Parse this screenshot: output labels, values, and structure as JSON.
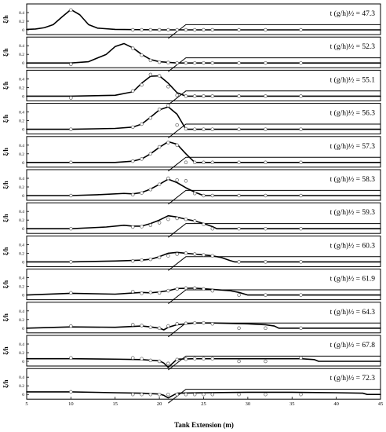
{
  "chart_data": {
    "type": "line",
    "xlabel": "Tank Extension (m)",
    "ylabel": "ξ/h",
    "xlim": [
      5,
      45
    ],
    "xticks": [
      5,
      10,
      15,
      20,
      25,
      30,
      35,
      40,
      45
    ],
    "ylim": [
      0,
      0.5
    ],
    "yticks": [
      "0",
      "0.2",
      "0.4"
    ],
    "gauge_x": [
      10,
      17,
      18,
      19,
      20,
      21,
      22,
      23,
      24,
      25,
      26,
      29,
      32,
      36
    ],
    "beach": [
      [
        21,
        -0.2
      ],
      [
        23,
        0.12
      ],
      [
        45,
        0.12
      ]
    ],
    "panels": [
      {
        "label": "t (g/h)½ = 47.3",
        "curve": [
          [
            5,
            0.01
          ],
          [
            6,
            0.02
          ],
          [
            7,
            0.05
          ],
          [
            8,
            0.12
          ],
          [
            9,
            0.3
          ],
          [
            10,
            0.47
          ],
          [
            11,
            0.35
          ],
          [
            12,
            0.12
          ],
          [
            13,
            0.04
          ],
          [
            15,
            0.01
          ],
          [
            20,
            0
          ],
          [
            23,
            0
          ],
          [
            45,
            0
          ]
        ],
        "points": [
          0.46,
          0,
          0,
          0,
          0,
          0,
          0,
          0,
          0,
          0,
          0,
          0,
          0,
          0
        ]
      },
      {
        "label": "t (g/h)½ = 52.3",
        "curve": [
          [
            5,
            0
          ],
          [
            10,
            0
          ],
          [
            12,
            0.03
          ],
          [
            14,
            0.2
          ],
          [
            15,
            0.38
          ],
          [
            16,
            0.45
          ],
          [
            17,
            0.35
          ],
          [
            18,
            0.2
          ],
          [
            19,
            0.08
          ],
          [
            20,
            0.03
          ],
          [
            22,
            0
          ],
          [
            23,
            0
          ],
          [
            45,
            0
          ]
        ],
        "points": [
          -0.03,
          0.34,
          0.18,
          0.06,
          0.02,
          0.01,
          0,
          0,
          0,
          0,
          0,
          0,
          0,
          0
        ]
      },
      {
        "label": "t (g/h)½ = 55.1",
        "curve": [
          [
            5,
            0
          ],
          [
            10,
            0
          ],
          [
            15,
            0.02
          ],
          [
            17,
            0.1
          ],
          [
            18,
            0.3
          ],
          [
            19,
            0.46
          ],
          [
            20,
            0.47
          ],
          [
            21,
            0.3
          ],
          [
            22,
            0.08
          ],
          [
            23,
            0
          ],
          [
            45,
            0
          ]
        ],
        "points": [
          -0.04,
          0.12,
          0.26,
          0.5,
          0.47,
          0.22,
          0.02,
          0,
          0,
          0,
          0,
          0,
          0,
          0
        ]
      },
      {
        "label": "t (g/h)½ = 56.3",
        "curve": [
          [
            5,
            0
          ],
          [
            10,
            0
          ],
          [
            15,
            0.02
          ],
          [
            17,
            0.05
          ],
          [
            18,
            0.12
          ],
          [
            19,
            0.28
          ],
          [
            20,
            0.45
          ],
          [
            21,
            0.52
          ],
          [
            22,
            0.35
          ],
          [
            23,
            0
          ],
          [
            45,
            0
          ]
        ],
        "points": [
          0,
          0.05,
          0.12,
          0.26,
          0.46,
          0.55,
          0.1,
          0.01,
          0,
          0,
          0,
          0,
          0,
          0
        ]
      },
      {
        "label": "t (g/h)½ = 57.3",
        "curve": [
          [
            5,
            0
          ],
          [
            10,
            0
          ],
          [
            15,
            0
          ],
          [
            17,
            0.03
          ],
          [
            18,
            0.08
          ],
          [
            19,
            0.2
          ],
          [
            20,
            0.35
          ],
          [
            21,
            0.48
          ],
          [
            22,
            0.42
          ],
          [
            23,
            0.2
          ],
          [
            24,
            0
          ],
          [
            45,
            0
          ]
        ],
        "points": [
          0,
          0.03,
          0.08,
          0.2,
          0.36,
          0.46,
          0.4,
          0,
          0,
          0,
          0,
          0,
          0,
          0
        ]
      },
      {
        "label": "t (g/h)½ = 58.3",
        "curve": [
          [
            5,
            0
          ],
          [
            10,
            0
          ],
          [
            13,
            0.02
          ],
          [
            16,
            0.05
          ],
          [
            17,
            0.04
          ],
          [
            18,
            0.07
          ],
          [
            19,
            0.15
          ],
          [
            20,
            0.26
          ],
          [
            21,
            0.38
          ],
          [
            22,
            0.3
          ],
          [
            23,
            0.18
          ],
          [
            24,
            0.08
          ],
          [
            25,
            0
          ],
          [
            45,
            0
          ]
        ],
        "points": [
          0,
          0.02,
          0.06,
          0.14,
          0.26,
          0.4,
          0.36,
          0.34,
          0.05,
          0,
          0,
          0,
          0,
          0
        ]
      },
      {
        "label": "t (g/h)½ = 59.3",
        "curve": [
          [
            5,
            0
          ],
          [
            10,
            0
          ],
          [
            14,
            0.04
          ],
          [
            16,
            0.08
          ],
          [
            17,
            0.06
          ],
          [
            18,
            0.06
          ],
          [
            19,
            0.12
          ],
          [
            20,
            0.2
          ],
          [
            21,
            0.3
          ],
          [
            22,
            0.27
          ],
          [
            23,
            0.22
          ],
          [
            24,
            0.18
          ],
          [
            25,
            0.12
          ],
          [
            26,
            0.05
          ],
          [
            26.5,
            0
          ],
          [
            45,
            0
          ]
        ],
        "points": [
          0,
          0.04,
          0.05,
          0.08,
          0.14,
          0.22,
          0.24,
          0.22,
          0.18,
          0.1,
          0,
          0,
          0,
          0
        ]
      },
      {
        "label": "t (g/h)½ = 60.3",
        "curve": [
          [
            5,
            0
          ],
          [
            10,
            0
          ],
          [
            15,
            0.02
          ],
          [
            18,
            0.04
          ],
          [
            19,
            0.06
          ],
          [
            20,
            0.12
          ],
          [
            21,
            0.2
          ],
          [
            22,
            0.22
          ],
          [
            23,
            0.2
          ],
          [
            24,
            0.18
          ],
          [
            25,
            0.16
          ],
          [
            26,
            0.14
          ],
          [
            27,
            0.1
          ],
          [
            28,
            0.03
          ],
          [
            28.5,
            0
          ],
          [
            45,
            0
          ]
        ],
        "points": [
          0,
          0.02,
          0.04,
          0.06,
          0.1,
          0.14,
          0.18,
          0.2,
          0.18,
          0.16,
          0.14,
          0,
          0,
          0
        ]
      },
      {
        "label": "t (g/h)½ = 61.9",
        "curve": [
          [
            5,
            0
          ],
          [
            10,
            0.04
          ],
          [
            15,
            0.02
          ],
          [
            18,
            0.06
          ],
          [
            19,
            0.05
          ],
          [
            20,
            0.07
          ],
          [
            21,
            0.1
          ],
          [
            22,
            0.15
          ],
          [
            24,
            0.16
          ],
          [
            26,
            0.13
          ],
          [
            28,
            0.1
          ],
          [
            29,
            0.06
          ],
          [
            30,
            0
          ],
          [
            45,
            0
          ]
        ],
        "points": [
          0.05,
          0.08,
          0.04,
          0.06,
          0.05,
          0.1,
          0.14,
          0.16,
          0.16,
          0.14,
          0.1,
          0,
          0,
          0
        ]
      },
      {
        "label": "t (g/h)½ = 64.3",
        "curve": [
          [
            5,
            0
          ],
          [
            10,
            0.03
          ],
          [
            15,
            0.02
          ],
          [
            18,
            0.05
          ],
          [
            19,
            0.03
          ],
          [
            20,
            0
          ],
          [
            20.5,
            -0.04
          ],
          [
            21,
            0.02
          ],
          [
            22,
            0.08
          ],
          [
            24,
            0.12
          ],
          [
            26,
            0.12
          ],
          [
            30,
            0.1
          ],
          [
            32,
            0.08
          ],
          [
            33,
            0.05
          ],
          [
            33.5,
            0
          ],
          [
            45,
            0
          ]
        ],
        "points": [
          0.05,
          0.08,
          0.06,
          0.02,
          0,
          0.05,
          0.1,
          0.11,
          0.12,
          0.12,
          0.1,
          0,
          0,
          0
        ]
      },
      {
        "label": "t (g/h)½ = 67.8",
        "curve": [
          [
            5,
            0.06
          ],
          [
            10,
            0.06
          ],
          [
            15,
            0.05
          ],
          [
            18,
            0.04
          ],
          [
            20,
            0.01
          ],
          [
            20.5,
            -0.04
          ],
          [
            21,
            -0.14
          ],
          [
            22,
            0.05
          ],
          [
            24,
            0.06
          ],
          [
            28,
            0.06
          ],
          [
            32,
            0.06
          ],
          [
            36,
            0.06
          ],
          [
            37.5,
            0.04
          ],
          [
            38,
            0
          ],
          [
            45,
            0
          ]
        ],
        "points": [
          0.08,
          0.08,
          0.06,
          0.02,
          0,
          -0.05,
          0.04,
          0.05,
          0.06,
          0.06,
          0.06,
          0,
          0,
          0.08
        ]
      },
      {
        "label": "t (g/h)½ = 72.3",
        "curve": [
          [
            5,
            0.06
          ],
          [
            10,
            0.06
          ],
          [
            15,
            0.04
          ],
          [
            18,
            0.03
          ],
          [
            20,
            0.01
          ],
          [
            20.5,
            -0.02
          ],
          [
            21,
            -0.08
          ],
          [
            22,
            0.03
          ],
          [
            25,
            0.04
          ],
          [
            30,
            0.05
          ],
          [
            35,
            0.05
          ],
          [
            40,
            0.04
          ],
          [
            43,
            0.03
          ],
          [
            43.5,
            0
          ],
          [
            45,
            0
          ]
        ],
        "points": [
          0.06,
          0,
          0,
          0,
          0,
          0,
          0,
          0,
          0,
          0,
          0,
          0,
          0,
          0
        ]
      }
    ]
  }
}
